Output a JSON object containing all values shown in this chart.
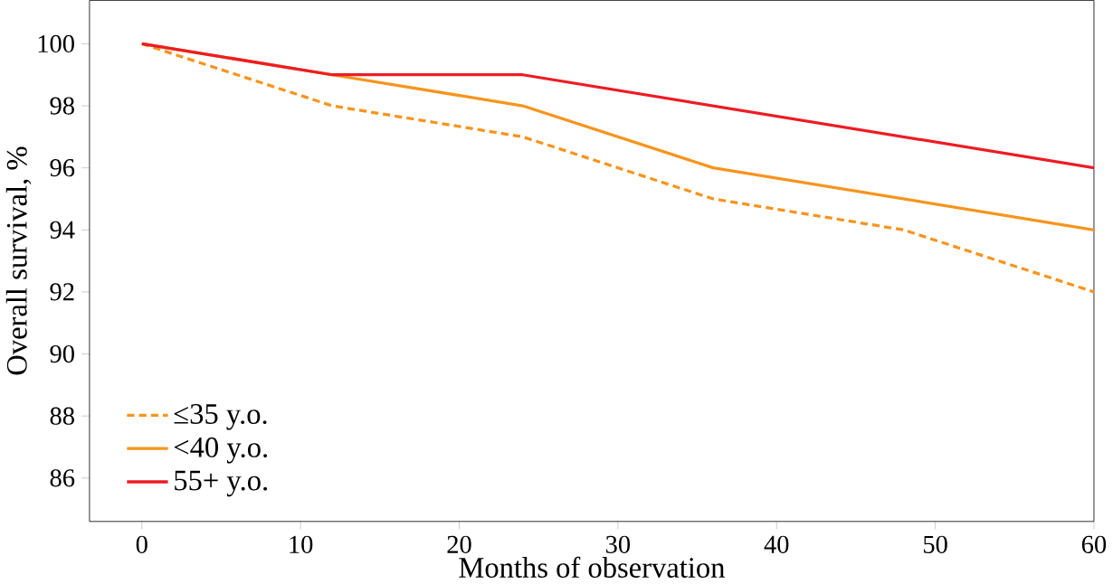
{
  "chart_data": {
    "type": "line",
    "xlabel": "Months of observation",
    "ylabel": "Overall survival, %",
    "xlim": [
      -3.3,
      60
    ],
    "ylim": [
      84.6,
      101.4
    ],
    "xticks": [
      0,
      10,
      20,
      30,
      40,
      50,
      60
    ],
    "yticks": [
      86,
      88,
      90,
      92,
      94,
      96,
      98,
      100
    ],
    "legend": "bottom left",
    "series": [
      {
        "name": "≤35 y.o.",
        "color": "#f7941d",
        "line_style": "dashed",
        "x": [
          0,
          12,
          24,
          36,
          48,
          60
        ],
        "values": [
          100,
          98,
          97,
          95,
          94,
          92
        ]
      },
      {
        "name": "<40 y.o.",
        "color": "#f7941d",
        "line_style": "solid",
        "x": [
          0,
          12,
          24,
          36,
          60
        ],
        "values": [
          100,
          99,
          98,
          96,
          94
        ]
      },
      {
        "name": "55+ y.o.",
        "color": "#ed1c24",
        "line_style": "solid",
        "x": [
          0,
          12,
          24,
          60
        ],
        "values": [
          100,
          99,
          99,
          96
        ]
      }
    ]
  }
}
